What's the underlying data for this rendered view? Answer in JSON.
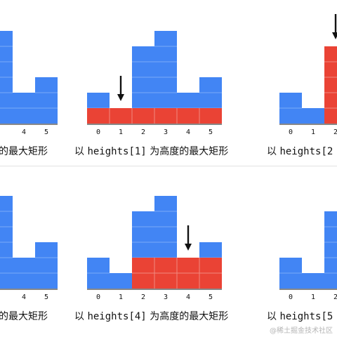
{
  "colors": {
    "bar": "#4285f4",
    "highlight": "#ea4335",
    "grid": "#7aaaf8",
    "arrow": "#111111",
    "axis": "#111111",
    "text": "#111111"
  },
  "heights": [
    2,
    1,
    5,
    6,
    2,
    3
  ],
  "x_tick_labels": [
    "0",
    "1",
    "2",
    "3",
    "4",
    "5"
  ],
  "panels": [
    {
      "row": 0,
      "col": 0,
      "focus_index": null,
      "highlight_from": null,
      "highlight_to": null,
      "visible_ticks": [
        4,
        5
      ],
      "caption_prefix": "",
      "caption_code": "",
      "caption_suffix": "的最大矩形"
    },
    {
      "row": 0,
      "col": 1,
      "focus_index": 1,
      "highlight_from": 0,
      "highlight_to": 5,
      "visible_ticks": [
        0,
        1,
        2,
        3,
        4,
        5
      ],
      "caption_prefix": "以 ",
      "caption_code": "heights[1]",
      "caption_suffix": " 为高度的最大矩形"
    },
    {
      "row": 0,
      "col": 2,
      "focus_index": 2,
      "highlight_from": 2,
      "highlight_to": 3,
      "visible_ticks": [
        0,
        1,
        2
      ],
      "caption_prefix": "以 ",
      "caption_code": "heights[2",
      "caption_suffix": ""
    },
    {
      "row": 1,
      "col": 0,
      "focus_index": null,
      "highlight_from": null,
      "highlight_to": null,
      "visible_ticks": [
        4,
        5
      ],
      "caption_prefix": "",
      "caption_code": "",
      "caption_suffix": "的最大矩形"
    },
    {
      "row": 1,
      "col": 1,
      "focus_index": 4,
      "highlight_from": 2,
      "highlight_to": 5,
      "visible_ticks": [
        0,
        1,
        2,
        3,
        4,
        5
      ],
      "caption_prefix": "以 ",
      "caption_code": "heights[4]",
      "caption_suffix": " 为高度的最大矩形"
    },
    {
      "row": 1,
      "col": 2,
      "focus_index": null,
      "highlight_from": null,
      "highlight_to": null,
      "visible_ticks": [
        0,
        1,
        2
      ],
      "caption_prefix": "以 ",
      "caption_code": "heights[5",
      "caption_suffix": ""
    }
  ],
  "watermark": "@稀土掘金技术社区"
}
